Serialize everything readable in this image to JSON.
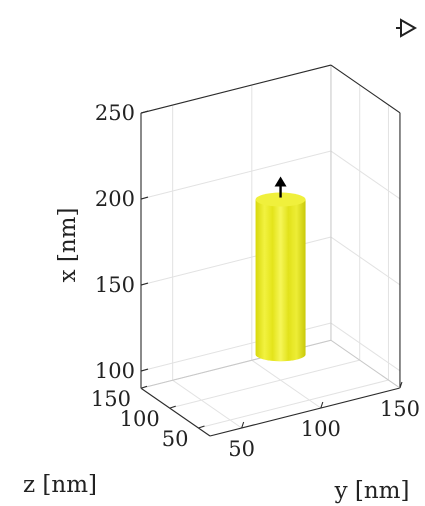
{
  "chart_data": {
    "type": "3d-surface",
    "object": "nanorod",
    "color": "#e8e81e",
    "xlabel": "x [nm]",
    "ylabel": "y [nm]",
    "zlabel": "z [nm]",
    "x_ticks": [
      "100",
      "150",
      "200",
      "250"
    ],
    "y_ticks": [
      "50",
      "100",
      "150"
    ],
    "z_ticks": [
      "50",
      "100",
      "150"
    ],
    "xlim": [
      90,
      250
    ],
    "ylim": [
      30,
      150
    ],
    "zlim": [
      30,
      150
    ],
    "rod": {
      "center_y": 100,
      "center_z": 100,
      "radius": 12,
      "x_bottom": 105,
      "x_top": 195
    },
    "arrow": {
      "direction": "+x"
    },
    "grid": true
  },
  "toolbar": {
    "icon": "rotate-3d-icon"
  }
}
